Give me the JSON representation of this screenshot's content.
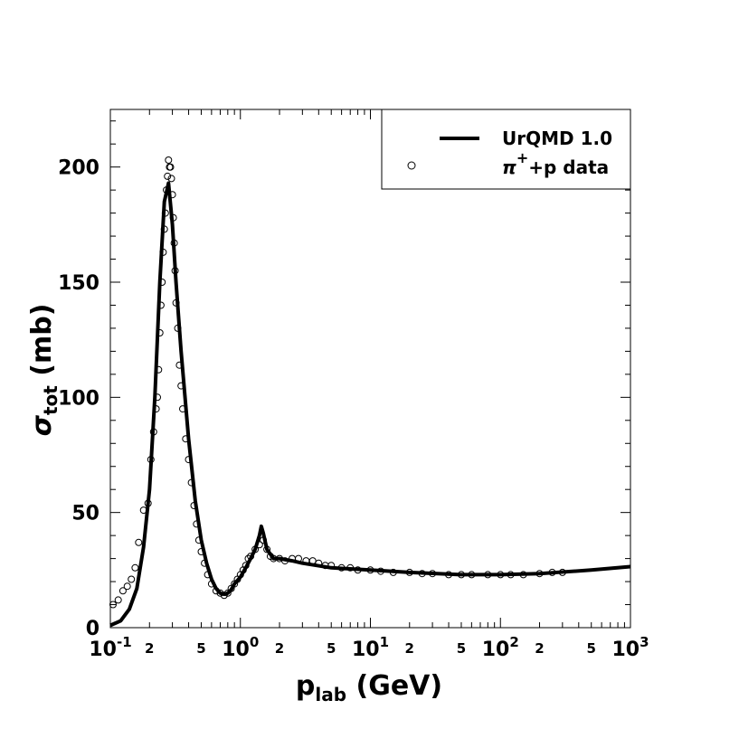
{
  "chart_data": {
    "type": "line",
    "xlabel": {
      "main": "p",
      "sub": "lab",
      "unit": " (GeV)"
    },
    "ylabel": {
      "main": "σ",
      "sub": "tot",
      "unit": " (mb)"
    },
    "x_scale": "log",
    "xlim": [
      0.1,
      1000
    ],
    "ylim": [
      0,
      225
    ],
    "grid": false,
    "legend_position": "top-right",
    "x_major_ticks": [
      {
        "value": 0.1,
        "base": "10",
        "exp": "-1"
      },
      {
        "value": 1,
        "base": "10",
        "exp": "0"
      },
      {
        "value": 10,
        "base": "10",
        "exp": "1"
      },
      {
        "value": 100,
        "base": "10",
        "exp": "2"
      },
      {
        "value": 1000,
        "base": "10",
        "exp": "3"
      }
    ],
    "x_minor_labels": [
      {
        "value": 0.2,
        "label": "2"
      },
      {
        "value": 0.5,
        "label": "5"
      },
      {
        "value": 2,
        "label": "2"
      },
      {
        "value": 5,
        "label": "5"
      },
      {
        "value": 20,
        "label": "2"
      },
      {
        "value": 50,
        "label": "5"
      },
      {
        "value": 200,
        "label": "2"
      },
      {
        "value": 500,
        "label": "5"
      }
    ],
    "y_ticks": [
      {
        "value": 0,
        "label": "0"
      },
      {
        "value": 50,
        "label": "50"
      },
      {
        "value": 100,
        "label": "100"
      },
      {
        "value": 150,
        "label": "150"
      },
      {
        "value": 200,
        "label": "200"
      }
    ],
    "series": [
      {
        "name": "UrQMD 1.0",
        "style": "line",
        "color": "#000000",
        "x": [
          0.1,
          0.12,
          0.14,
          0.16,
          0.18,
          0.2,
          0.22,
          0.24,
          0.26,
          0.28,
          0.3,
          0.32,
          0.35,
          0.4,
          0.45,
          0.5,
          0.55,
          0.6,
          0.65,
          0.7,
          0.75,
          0.8,
          0.85,
          0.9,
          1.0,
          1.1,
          1.2,
          1.3,
          1.4,
          1.45,
          1.5,
          1.6,
          1.8,
          2.0,
          2.5,
          3,
          5,
          10,
          20,
          50,
          100,
          200,
          500,
          1000
        ],
        "y": [
          1,
          3,
          8,
          17,
          35,
          60,
          100,
          150,
          185,
          193,
          175,
          150,
          120,
          82,
          55,
          38,
          28,
          21,
          17,
          15,
          14.5,
          15,
          16.5,
          19,
          22,
          26,
          30,
          34,
          40,
          44,
          41,
          34,
          30,
          30,
          29,
          28,
          26,
          25,
          24,
          23,
          23,
          23.5,
          25,
          26.5
        ]
      },
      {
        "name": "π⁺+p data",
        "style": "marker",
        "marker": "open-circle",
        "color": "#000000",
        "x": [
          0.105,
          0.115,
          0.125,
          0.135,
          0.145,
          0.155,
          0.165,
          0.18,
          0.195,
          0.205,
          0.215,
          0.225,
          0.23,
          0.235,
          0.24,
          0.245,
          0.25,
          0.255,
          0.26,
          0.265,
          0.27,
          0.275,
          0.28,
          0.285,
          0.29,
          0.295,
          0.3,
          0.305,
          0.31,
          0.315,
          0.32,
          0.33,
          0.34,
          0.35,
          0.36,
          0.38,
          0.4,
          0.42,
          0.44,
          0.46,
          0.48,
          0.5,
          0.53,
          0.56,
          0.6,
          0.65,
          0.7,
          0.75,
          0.8,
          0.85,
          0.9,
          0.95,
          1.0,
          1.05,
          1.1,
          1.15,
          1.2,
          1.3,
          1.4,
          1.5,
          1.6,
          1.7,
          1.8,
          2.0,
          2.2,
          2.5,
          2.8,
          3.2,
          3.6,
          4,
          4.5,
          5,
          6,
          7,
          8,
          10,
          12,
          15,
          20,
          25,
          30,
          40,
          50,
          60,
          80,
          100,
          120,
          150,
          200,
          250,
          300
        ],
        "y": [
          10,
          12,
          16,
          18,
          21,
          26,
          37,
          51,
          54,
          73,
          85,
          95,
          100,
          112,
          128,
          140,
          150,
          163,
          173,
          180,
          190,
          196,
          203,
          200,
          200,
          195,
          188,
          178,
          167,
          155,
          141,
          130,
          114,
          105,
          95,
          82,
          73,
          63,
          53,
          45,
          38,
          33,
          28,
          23,
          19,
          16,
          15,
          14,
          15,
          17,
          19,
          21,
          23,
          25,
          27,
          30,
          31,
          34,
          36,
          38,
          34,
          31,
          30,
          30,
          29,
          30,
          30,
          29,
          29,
          28,
          27,
          27,
          26,
          26,
          25,
          25,
          24.5,
          24,
          24,
          23.5,
          23.5,
          23,
          23,
          23,
          23,
          23,
          23,
          23,
          23.5,
          24,
          24
        ]
      }
    ],
    "legend": {
      "entries": [
        {
          "label": "UrQMD 1.0",
          "kind": "line"
        },
        {
          "label_base": "π",
          "label_sup": "+",
          "label_rest": "+p data",
          "kind": "marker"
        }
      ]
    }
  }
}
